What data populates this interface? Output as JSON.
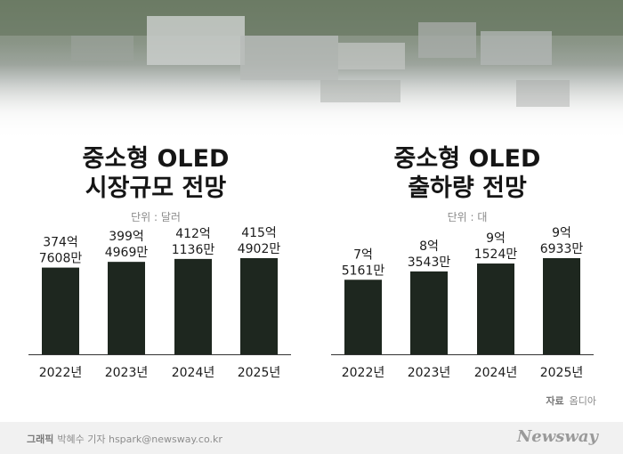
{
  "charts": [
    {
      "title_line1": "중소형 OLED",
      "title_line2": "시장규모 전망",
      "unit": "단위 : 달러"
    },
    {
      "title_line1": "중소형 OLED",
      "title_line2": "출하량 전망",
      "unit": "단위 : 대"
    }
  ],
  "chart_data": [
    {
      "type": "bar",
      "title": "중소형 OLED 시장규모 전망",
      "unit": "단위 : 달러",
      "categories": [
        "2022년",
        "2023년",
        "2024년",
        "2025년"
      ],
      "values": [
        37476080000,
        39949690000,
        41211360000,
        41549020000
      ],
      "value_labels": [
        [
          "374억",
          "7608만"
        ],
        [
          "399억",
          "4969만"
        ],
        [
          "412억",
          "1136만"
        ],
        [
          "415억",
          "4902만"
        ]
      ],
      "bar_color": "#1e271f"
    },
    {
      "type": "bar",
      "title": "중소형 OLED 출하량 전망",
      "unit": "단위 : 대",
      "categories": [
        "2022년",
        "2023년",
        "2024년",
        "2025년"
      ],
      "values": [
        751610000,
        835430000,
        915240000,
        969330000
      ],
      "value_labels": [
        [
          "7억",
          "5161만"
        ],
        [
          "8억",
          "3543만"
        ],
        [
          "9억",
          "1524만"
        ],
        [
          "9억",
          "6933만"
        ]
      ],
      "bar_color": "#1e271f"
    }
  ],
  "source": {
    "label": "자료",
    "name": "옴디아"
  },
  "footer": {
    "credit_label": "그래픽",
    "credit_text": "박혜수 기자 hspark@newsway.co.kr",
    "logo": "Newsway"
  }
}
